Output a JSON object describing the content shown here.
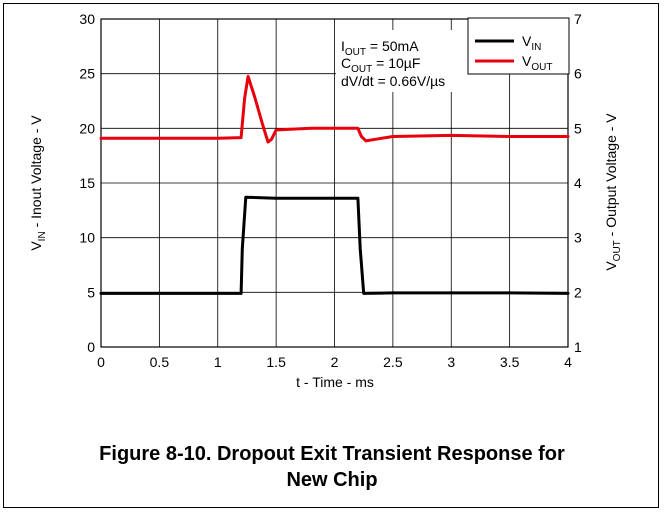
{
  "caption": {
    "line1": "Figure 8-10. Dropout Exit Transient Response for",
    "line2": "New Chip"
  },
  "chart_data": {
    "type": "line",
    "xlabel": "t - Time - ms",
    "ylabel_left": {
      "main": "V",
      "sub": "IN",
      "rest": " - Inout Voltage - V"
    },
    "ylabel_right": {
      "main": "V",
      "sub": "OUT",
      "rest": " - Output Voltage - V"
    },
    "xlim": [
      0,
      4
    ],
    "ylim_left": [
      0,
      30
    ],
    "ylim_right": [
      1,
      7
    ],
    "x_ticks": [
      "0",
      "0.5",
      "1",
      "1.5",
      "2",
      "2.5",
      "3",
      "3.5",
      "4"
    ],
    "y_left_ticks": [
      "0",
      "5",
      "10",
      "15",
      "20",
      "25",
      "30"
    ],
    "y_right_ticks": [
      "1",
      "2",
      "3",
      "4",
      "5",
      "6",
      "7"
    ],
    "grid": true,
    "legend_position": "top-right",
    "annotations": [
      {
        "main": "I",
        "sub": "OUT",
        "rest": " = 50mA"
      },
      {
        "main": "C",
        "sub": "OUT",
        "rest": " = 10µF"
      },
      {
        "main": "dV/dt = 0.66V/µs",
        "sub": "",
        "rest": ""
      }
    ],
    "series": [
      {
        "name": "V",
        "name_sub": "IN",
        "axis": "left",
        "color": "#000000",
        "x": [
          0,
          1.2,
          1.21,
          1.24,
          1.5,
          2.0,
          2.2,
          2.22,
          2.25,
          2.5,
          3.0,
          3.5,
          4.0
        ],
        "y": [
          4.9,
          4.9,
          9.0,
          13.7,
          13.6,
          13.6,
          13.6,
          9.0,
          4.9,
          4.95,
          4.95,
          4.95,
          4.9
        ]
      },
      {
        "name": "V",
        "name_sub": "OUT",
        "axis": "right",
        "color": "#e8000b",
        "x": [
          0,
          0.5,
          1.0,
          1.2,
          1.23,
          1.26,
          1.32,
          1.38,
          1.43,
          1.46,
          1.5,
          1.6,
          1.8,
          2.0,
          2.2,
          2.23,
          2.27,
          2.35,
          2.5,
          3.0,
          3.5,
          4.0
        ],
        "y": [
          4.82,
          4.82,
          4.82,
          4.83,
          5.55,
          5.95,
          5.55,
          5.1,
          4.75,
          4.8,
          4.97,
          4.98,
          5.0,
          5.0,
          5.0,
          4.85,
          4.77,
          4.8,
          4.85,
          4.87,
          4.85,
          4.85
        ]
      }
    ]
  }
}
